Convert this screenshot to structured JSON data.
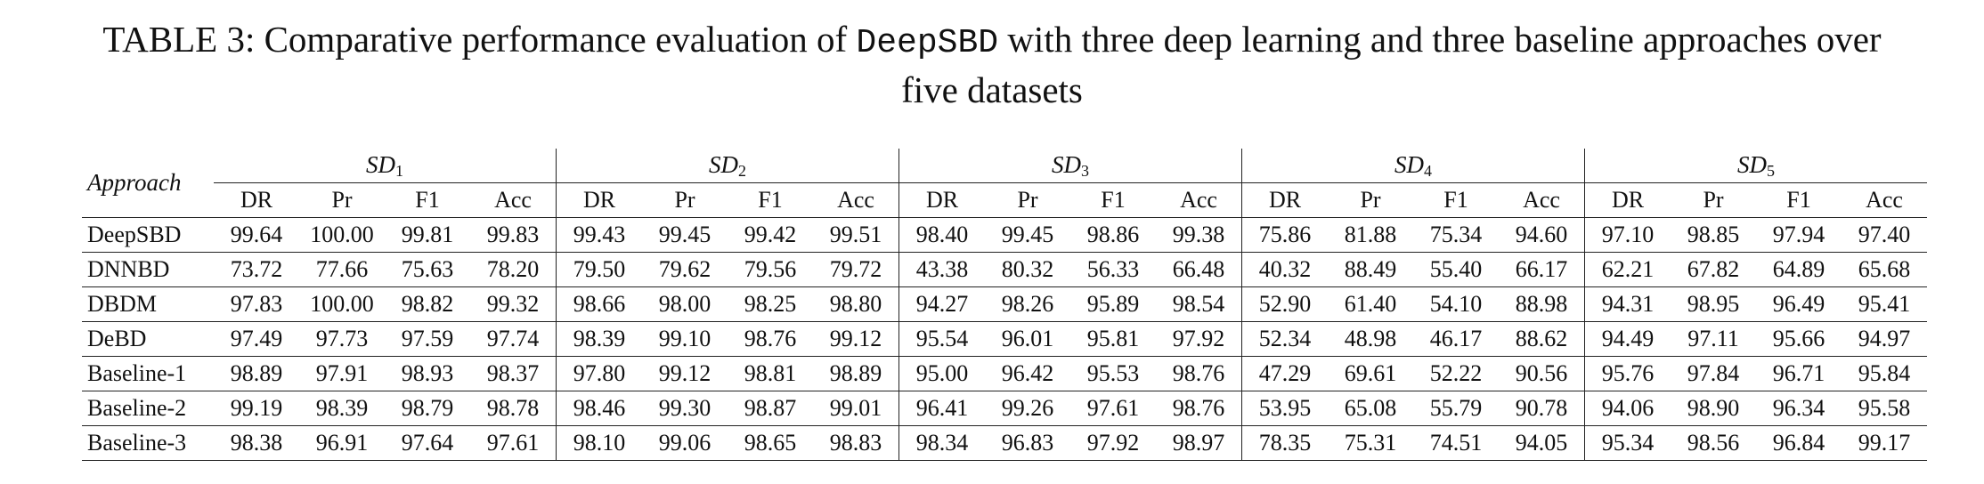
{
  "caption": {
    "line1_prefix": "TABLE 3: Comparative performance evaluation of ",
    "line1_mono": "DeepSBD",
    "line1_suffix": " with three deep learning and three baseline approaches over",
    "line2": "five datasets"
  },
  "table": {
    "approach_header": "Approach",
    "groups": [
      {
        "name": "SD",
        "sub": "1"
      },
      {
        "name": "SD",
        "sub": "2"
      },
      {
        "name": "SD",
        "sub": "3"
      },
      {
        "name": "SD",
        "sub": "4"
      },
      {
        "name": "SD",
        "sub": "5"
      }
    ],
    "metrics": [
      "DR",
      "Pr",
      "F1",
      "Acc"
    ],
    "rows": [
      {
        "approach": "DeepSBD",
        "values": [
          "99.64",
          "100.00",
          "99.81",
          "99.83",
          "99.43",
          "99.45",
          "99.42",
          "99.51",
          "98.40",
          "99.45",
          "98.86",
          "99.38",
          "75.86",
          "81.88",
          "75.34",
          "94.60",
          "97.10",
          "98.85",
          "97.94",
          "97.40"
        ],
        "bold": [
          0,
          1,
          2,
          3,
          4,
          5,
          6,
          7,
          8,
          9,
          10,
          11,
          14,
          15,
          16,
          18
        ]
      },
      {
        "approach": "DNNBD",
        "values": [
          "73.72",
          "77.66",
          "75.63",
          "78.20",
          "79.50",
          "79.62",
          "79.56",
          "79.72",
          "43.38",
          "80.32",
          "56.33",
          "66.48",
          "40.32",
          "88.49",
          "55.40",
          "66.17",
          "62.21",
          "67.82",
          "64.89",
          "65.68"
        ],
        "bold": [
          13
        ]
      },
      {
        "approach": "DBDM",
        "values": [
          "97.83",
          "100.00",
          "98.82",
          "99.32",
          "98.66",
          "98.00",
          "98.25",
          "98.80",
          "94.27",
          "98.26",
          "95.89",
          "98.54",
          "52.90",
          "61.40",
          "54.10",
          "88.98",
          "94.31",
          "98.95",
          "96.49",
          "95.41"
        ],
        "bold": [
          17
        ]
      },
      {
        "approach": "DeBD",
        "values": [
          "97.49",
          "97.73",
          "97.59",
          "97.74",
          "98.39",
          "99.10",
          "98.76",
          "99.12",
          "95.54",
          "96.01",
          "95.81",
          "97.92",
          "52.34",
          "48.98",
          "46.17",
          "88.62",
          "94.49",
          "97.11",
          "95.66",
          "94.97"
        ],
        "bold": []
      },
      {
        "approach": "Baseline-1",
        "values": [
          "98.89",
          "97.91",
          "98.93",
          "98.37",
          "97.80",
          "99.12",
          "98.81",
          "98.89",
          "95.00",
          "96.42",
          "95.53",
          "98.76",
          "47.29",
          "69.61",
          "52.22",
          "90.56",
          "95.76",
          "97.84",
          "96.71",
          "95.84"
        ],
        "bold": []
      },
      {
        "approach": "Baseline-2",
        "values": [
          "99.19",
          "98.39",
          "98.79",
          "98.78",
          "98.46",
          "99.30",
          "98.87",
          "99.01",
          "96.41",
          "99.26",
          "97.61",
          "98.76",
          "53.95",
          "65.08",
          "55.79",
          "90.78",
          "94.06",
          "98.90",
          "96.34",
          "95.58"
        ],
        "bold": []
      },
      {
        "approach": "Baseline-3",
        "values": [
          "98.38",
          "96.91",
          "97.64",
          "97.61",
          "98.10",
          "99.06",
          "98.65",
          "98.83",
          "98.34",
          "96.83",
          "97.92",
          "98.97",
          "78.35",
          "75.31",
          "74.51",
          "94.05",
          "95.34",
          "98.56",
          "96.84",
          "99.17"
        ],
        "bold": [
          12,
          19
        ]
      }
    ]
  }
}
